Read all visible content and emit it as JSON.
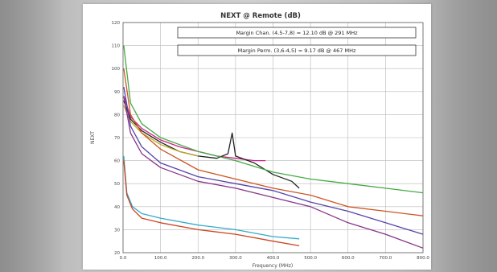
{
  "chart_data": {
    "type": "line",
    "title": "NEXT @ Remote (dB)",
    "xlabel": "Frequency (MHz)",
    "ylabel": "NEXT",
    "xlim": [
      0,
      800
    ],
    "ylim": [
      20,
      120
    ],
    "x_ticks": [
      "0.0",
      "100.0",
      "200.0",
      "300.0",
      "400.0",
      "500.0",
      "600.0",
      "700.0",
      "800.0"
    ],
    "y_ticks": [
      "120",
      "110",
      "100",
      "90",
      "80",
      "70",
      "60",
      "50",
      "40",
      "30",
      "20"
    ],
    "grid": true,
    "annotations": [
      "Margin Chan. (4.5-7,8) = 12.10 dB @ 291 MHz",
      "Margin Perm. (3,6-4,5) = 9.17 dB @ 467 MHz"
    ],
    "series": [
      {
        "color": "#cc2288",
        "x": [
          2,
          20,
          50,
          100,
          150,
          200,
          250,
          300,
          350,
          380
        ],
        "y": [
          88,
          79,
          74,
          69,
          66,
          64,
          62,
          61,
          60,
          60
        ]
      },
      {
        "color": "#222222",
        "x": [
          2,
          20,
          50,
          100,
          150,
          200,
          250,
          280,
          291,
          300,
          350,
          400,
          450,
          470
        ],
        "y": [
          86,
          78,
          73,
          68,
          64,
          62,
          61,
          63,
          72,
          62,
          59,
          54,
          51,
          48
        ]
      },
      {
        "color": "#bbaa22",
        "x": [
          2,
          20,
          50,
          100,
          150,
          200
        ],
        "y": [
          84,
          77,
          72,
          67,
          64,
          62
        ]
      },
      {
        "color": "#44aa44",
        "x": [
          2,
          20,
          50,
          100,
          200,
          300,
          400,
          500,
          600,
          700,
          800
        ],
        "y": [
          110,
          85,
          76,
          70,
          64,
          60,
          55,
          52,
          50,
          48,
          46
        ]
      },
      {
        "color": "#cc5522",
        "x": [
          2,
          20,
          50,
          100,
          200,
          300,
          400,
          500,
          600,
          700,
          800
        ],
        "y": [
          100,
          80,
          72,
          65,
          56,
          52,
          48,
          45,
          40,
          38,
          36
        ]
      },
      {
        "color": "#5544aa",
        "x": [
          2,
          20,
          50,
          100,
          200,
          300,
          400,
          500,
          600,
          700,
          800
        ],
        "y": [
          92,
          75,
          66,
          59,
          53,
          50,
          47,
          42,
          38,
          33,
          28
        ]
      },
      {
        "color": "#883388",
        "x": [
          2,
          20,
          50,
          100,
          200,
          300,
          400,
          500,
          600,
          700,
          800
        ],
        "y": [
          88,
          72,
          63,
          57,
          51,
          48,
          44,
          40,
          33,
          28,
          22
        ]
      },
      {
        "color": "#33aacc",
        "x": [
          2,
          10,
          25,
          50,
          100,
          200,
          300,
          400,
          470
        ],
        "y": [
          62,
          46,
          40,
          37,
          35,
          32,
          30,
          27,
          26
        ]
      },
      {
        "color": "#cc4422",
        "x": [
          2,
          10,
          25,
          50,
          100,
          200,
          300,
          400,
          470
        ],
        "y": [
          60,
          45,
          39,
          35,
          33,
          30,
          28,
          25,
          23
        ]
      }
    ]
  }
}
